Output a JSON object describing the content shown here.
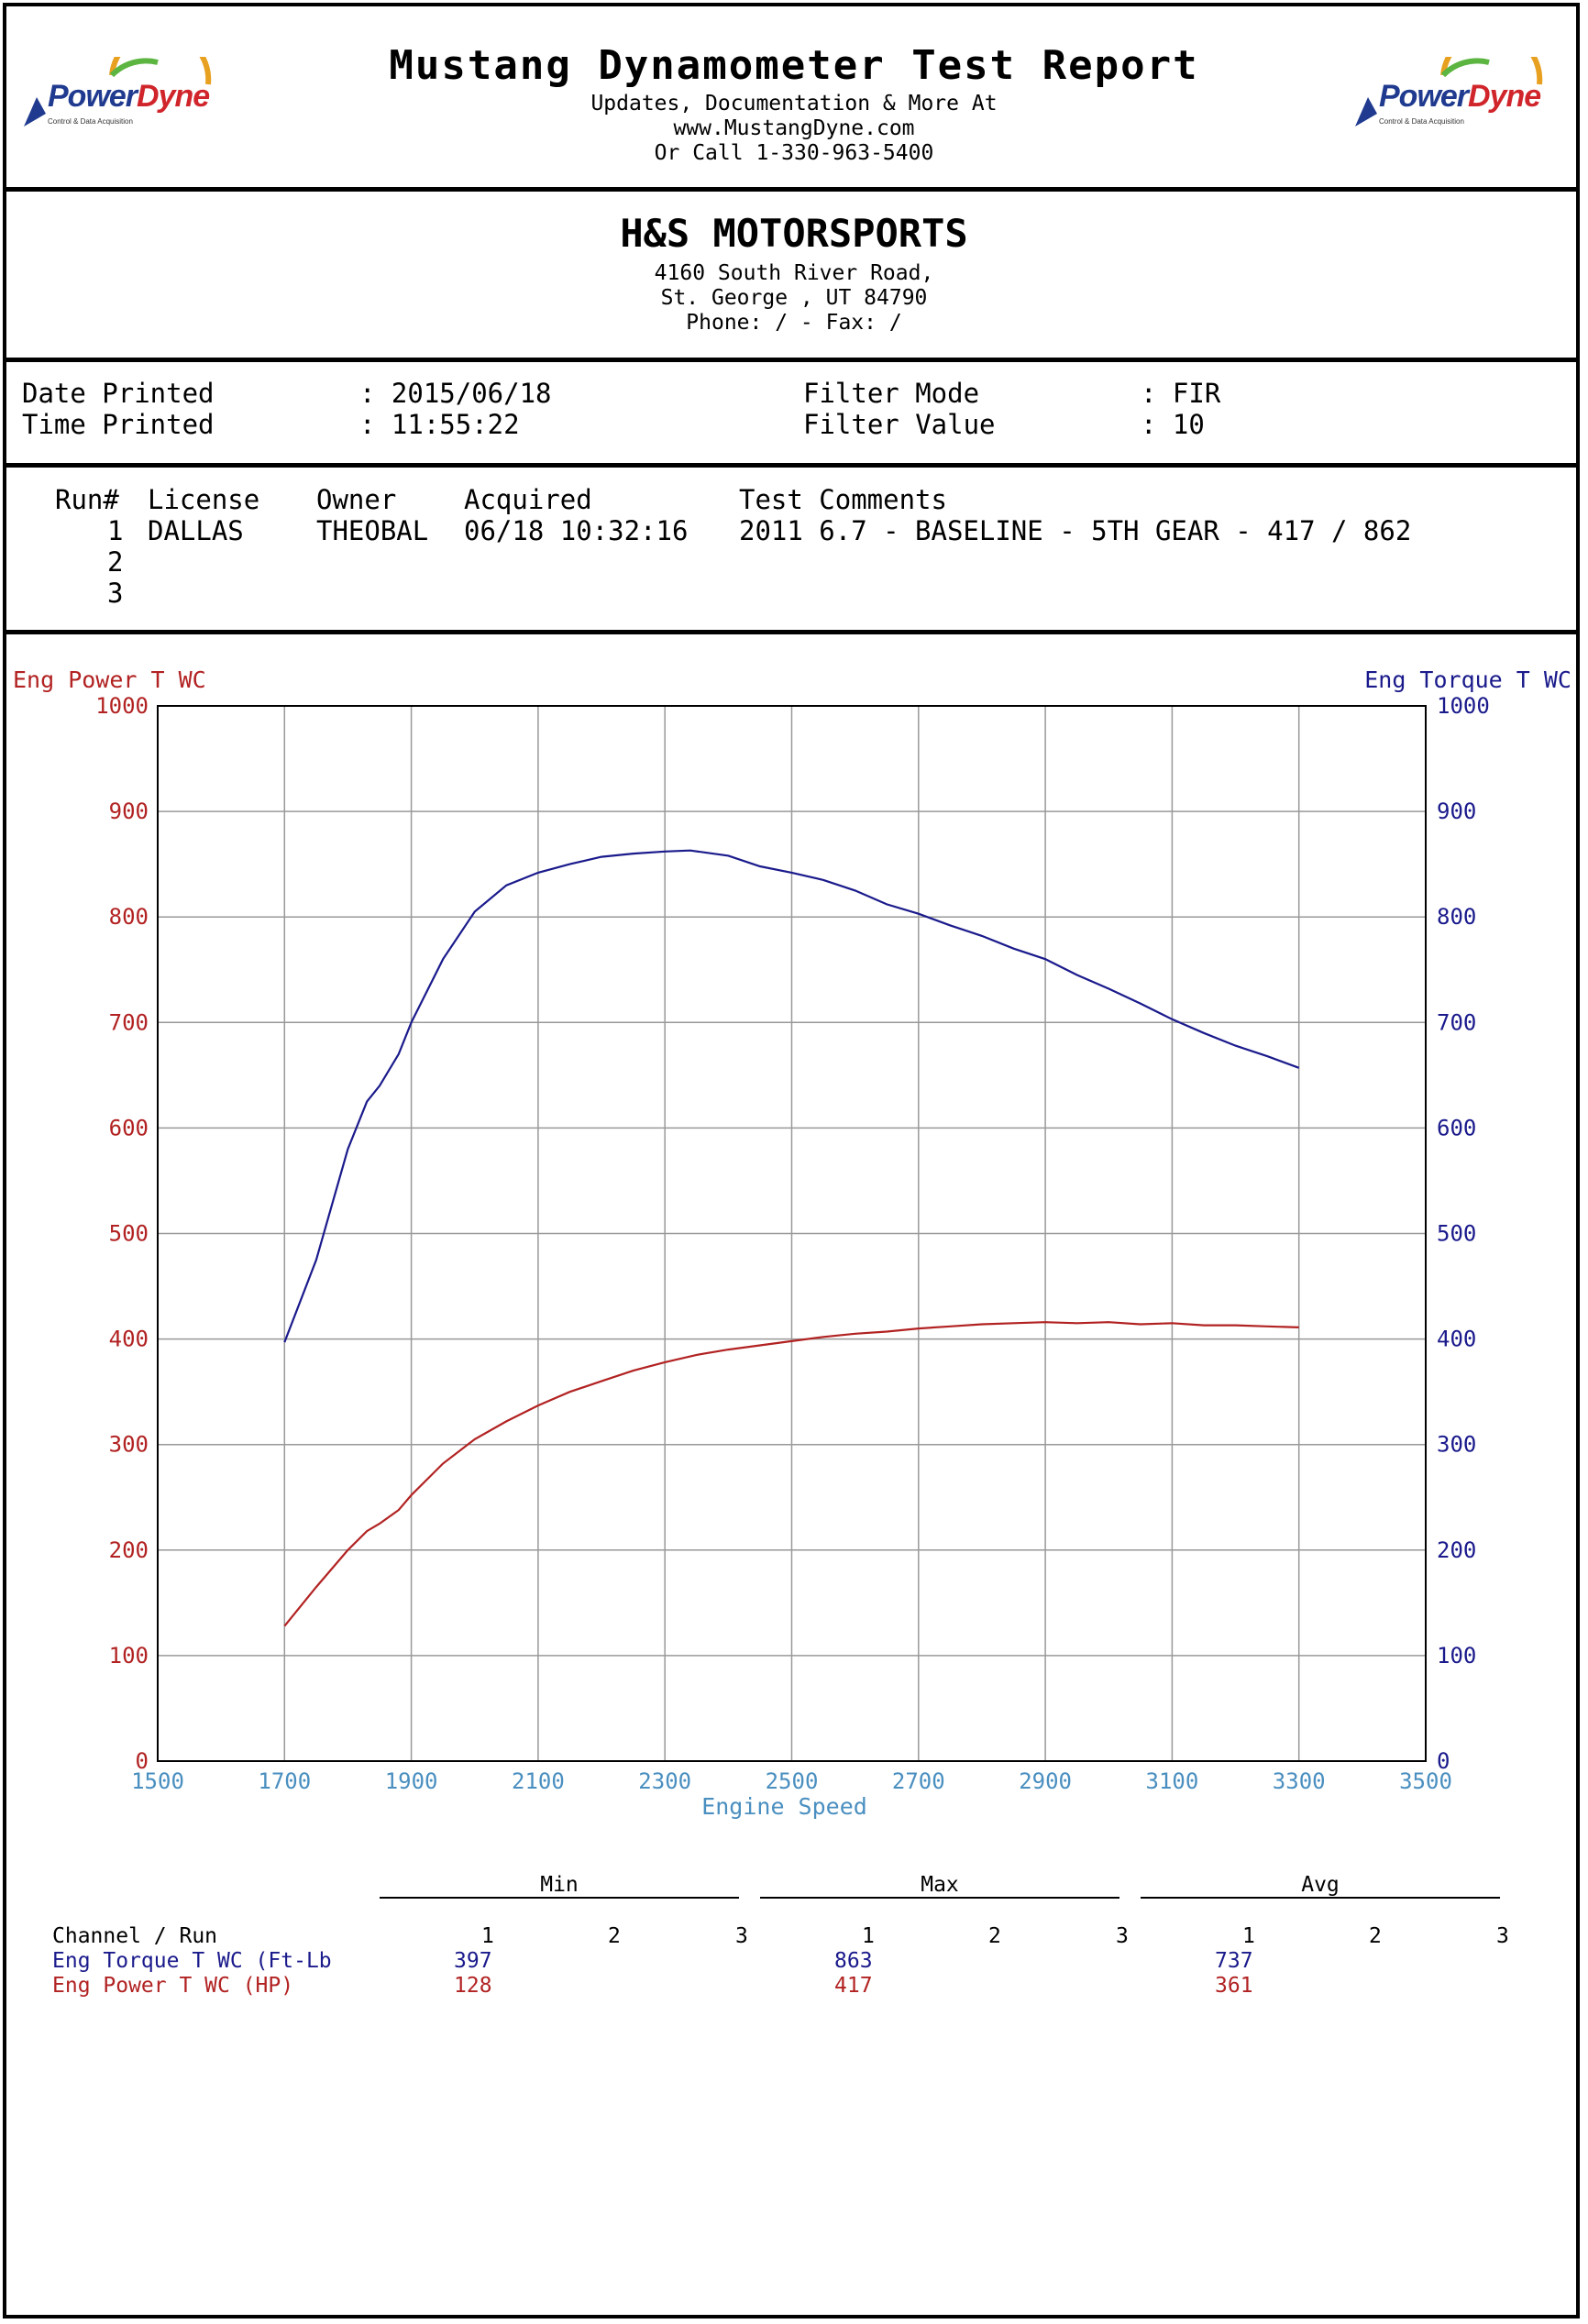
{
  "header": {
    "title": "Mustang Dynamometer Test Report",
    "line1": "Updates, Documentation & More At",
    "line2": "www.MustangDyne.com",
    "line3": "Or Call 1-330-963-5400",
    "logo_power": "Power",
    "logo_dyne": "Dyne",
    "logo_sub": "Control & Data Acquisition"
  },
  "shop": {
    "name": "H&S MOTORSPORTS",
    "address": "4160 South River Road,",
    "city": "St. George , UT  84790",
    "phone": "Phone:  /  - Fax:  /"
  },
  "print_info": {
    "date_label": "Date Printed",
    "date_value": ": 2015/06/18",
    "time_label": "Time Printed",
    "time_value": ": 11:55:22",
    "filter_mode_label": "Filter Mode",
    "filter_mode_value": ": FIR",
    "filter_value_label": "Filter Value",
    "filter_value_value": ": 10"
  },
  "runs": {
    "headers": [
      "Run#",
      "License",
      "Owner",
      "Acquired",
      "Test Comments"
    ],
    "rows": [
      [
        "1",
        "DALLAS",
        "THEOBAL",
        "06/18 10:32:16",
        "2011 6.7 - BASELINE - 5TH GEAR - 417 / 862"
      ],
      [
        "2",
        "",
        "",
        "",
        ""
      ],
      [
        "3",
        "",
        "",
        "",
        ""
      ]
    ]
  },
  "chart_data": {
    "type": "line",
    "xlabel": "Engine Speed",
    "ylabel_left": "Eng Power T WC",
    "ylabel_right": "Eng Torque T WC",
    "xlim": [
      1500,
      3500
    ],
    "ylim": [
      0,
      1000
    ],
    "x_ticks": [
      1500,
      1700,
      1900,
      2100,
      2300,
      2500,
      2700,
      2900,
      3100,
      3300,
      3500
    ],
    "y_ticks": [
      0,
      100,
      200,
      300,
      400,
      500,
      600,
      700,
      800,
      900,
      1000
    ],
    "grid": true,
    "colors": {
      "power": "#b22222",
      "torque": "#1a1a8c",
      "xaxis": "#4a8fc0"
    },
    "series": [
      {
        "name": "Eng Torque T WC",
        "x": [
          1700,
          1750,
          1800,
          1830,
          1850,
          1880,
          1900,
          1950,
          2000,
          2050,
          2100,
          2150,
          2200,
          2250,
          2300,
          2340,
          2400,
          2450,
          2500,
          2550,
          2600,
          2650,
          2700,
          2750,
          2800,
          2850,
          2900,
          2950,
          3000,
          3050,
          3100,
          3150,
          3200,
          3250,
          3300
        ],
        "values": [
          397,
          475,
          580,
          625,
          640,
          670,
          700,
          760,
          805,
          830,
          842,
          850,
          857,
          860,
          862,
          863,
          858,
          848,
          842,
          835,
          825,
          812,
          803,
          792,
          782,
          770,
          760,
          745,
          732,
          718,
          703,
          690,
          678,
          668,
          657
        ]
      },
      {
        "name": "Eng Power T WC",
        "x": [
          1700,
          1750,
          1800,
          1830,
          1850,
          1880,
          1900,
          1950,
          2000,
          2050,
          2100,
          2150,
          2200,
          2250,
          2300,
          2350,
          2400,
          2450,
          2500,
          2550,
          2600,
          2650,
          2700,
          2750,
          2800,
          2850,
          2900,
          2950,
          3000,
          3050,
          3100,
          3150,
          3200,
          3250,
          3300
        ],
        "values": [
          128,
          165,
          200,
          218,
          225,
          238,
          252,
          282,
          305,
          322,
          337,
          350,
          360,
          370,
          378,
          385,
          390,
          394,
          398,
          402,
          405,
          407,
          410,
          412,
          414,
          415,
          416,
          415,
          416,
          414,
          415,
          413,
          413,
          412,
          411
        ]
      }
    ]
  },
  "stats": {
    "groups": [
      "Min",
      "Max",
      "Avg"
    ],
    "channel_header": "Channel / Run",
    "run_numbers": [
      "1",
      "2",
      "3"
    ],
    "rows": [
      {
        "channel": "Eng Torque T WC (Ft-Lb",
        "min": "397",
        "max": "863",
        "avg": "737"
      },
      {
        "channel": "Eng Power T WC (HP)",
        "min": "128",
        "max": "417",
        "avg": "361"
      }
    ]
  }
}
